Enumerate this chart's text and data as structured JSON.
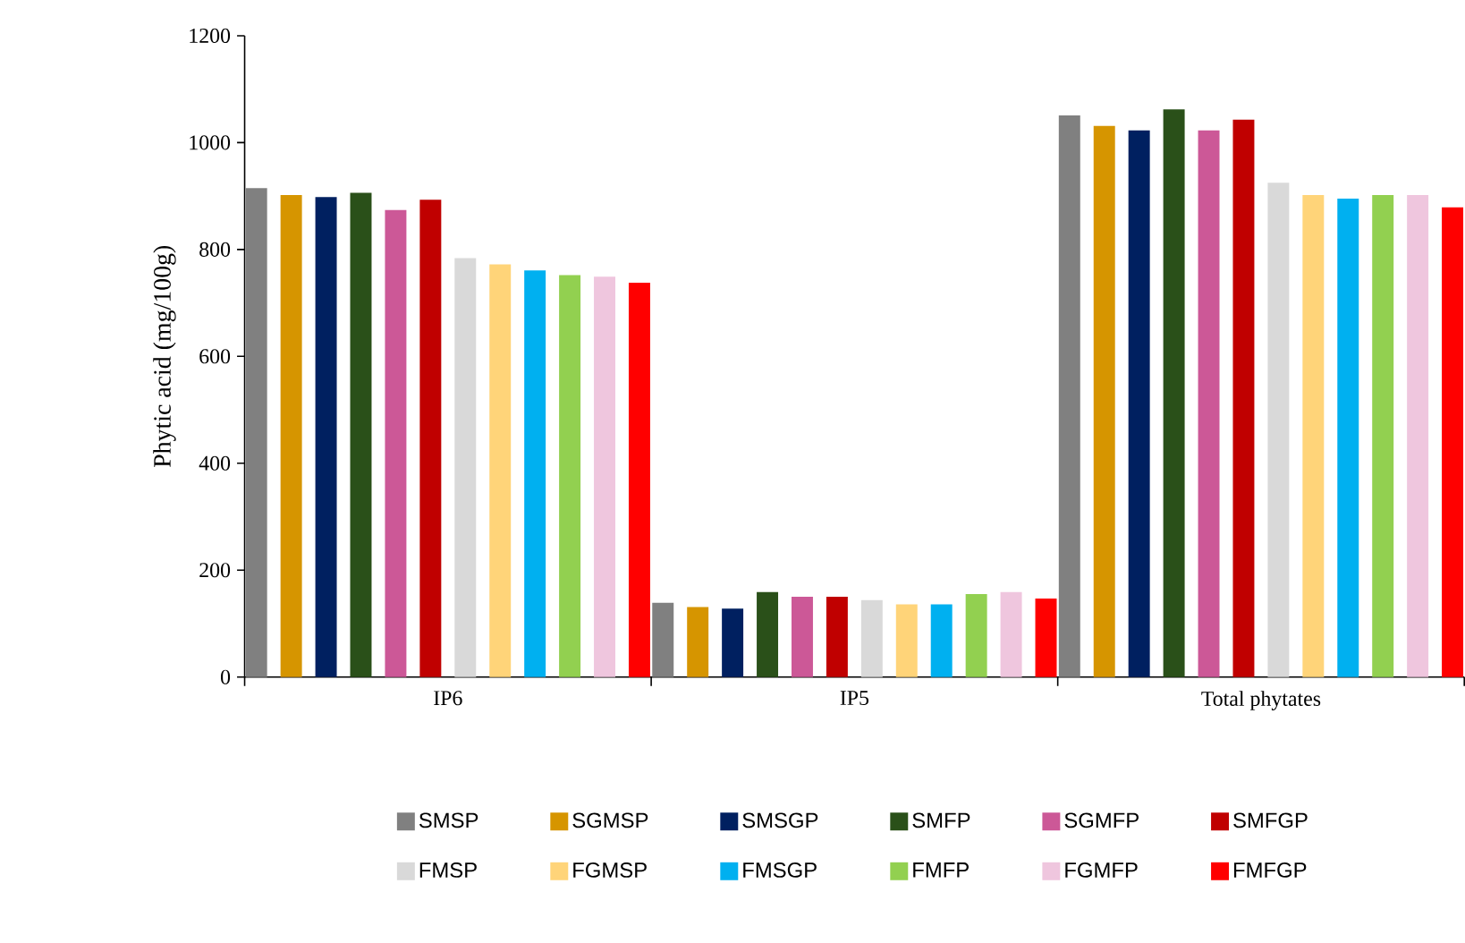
{
  "chart_data": {
    "type": "bar",
    "ylabel": "Phytic acid (mg/100g)",
    "categories": [
      "IP6",
      "IP5",
      "Total phytates"
    ],
    "ylim": [
      0,
      1200
    ],
    "yticks": [
      0,
      200,
      400,
      600,
      800,
      1000,
      1200
    ],
    "legend": "bottom",
    "grid": false,
    "series": [
      {
        "name": "SMSP",
        "color": "#808080",
        "values": [
          915,
          139,
          1051
        ]
      },
      {
        "name": "SGMSP",
        "color": "#d69500",
        "values": [
          902,
          131,
          1031
        ]
      },
      {
        "name": "SMSGP",
        "color": "#002060",
        "values": [
          898,
          128,
          1023
        ]
      },
      {
        "name": "SMFP",
        "color": "#2a5019",
        "values": [
          906,
          159,
          1062
        ]
      },
      {
        "name": "SGMFP",
        "color": "#cc5897",
        "values": [
          874,
          150,
          1023
        ]
      },
      {
        "name": "SMFGP",
        "color": "#c00000",
        "values": [
          893,
          150,
          1043
        ]
      },
      {
        "name": "FMSP",
        "color": "#d9d9d9",
        "values": [
          784,
          144,
          925
        ]
      },
      {
        "name": "FGMSP",
        "color": "#ffd479",
        "values": [
          772,
          136,
          902
        ]
      },
      {
        "name": "FMSGP",
        "color": "#00b0f0",
        "values": [
          761,
          136,
          895
        ]
      },
      {
        "name": "FMFP",
        "color": "#92d050",
        "values": [
          752,
          155,
          902
        ]
      },
      {
        "name": "FGMFP",
        "color": "#efc6de",
        "values": [
          749,
          159,
          902
        ]
      },
      {
        "name": "FMFGP",
        "color": "#ff0000",
        "values": [
          738,
          147,
          879
        ]
      }
    ]
  }
}
